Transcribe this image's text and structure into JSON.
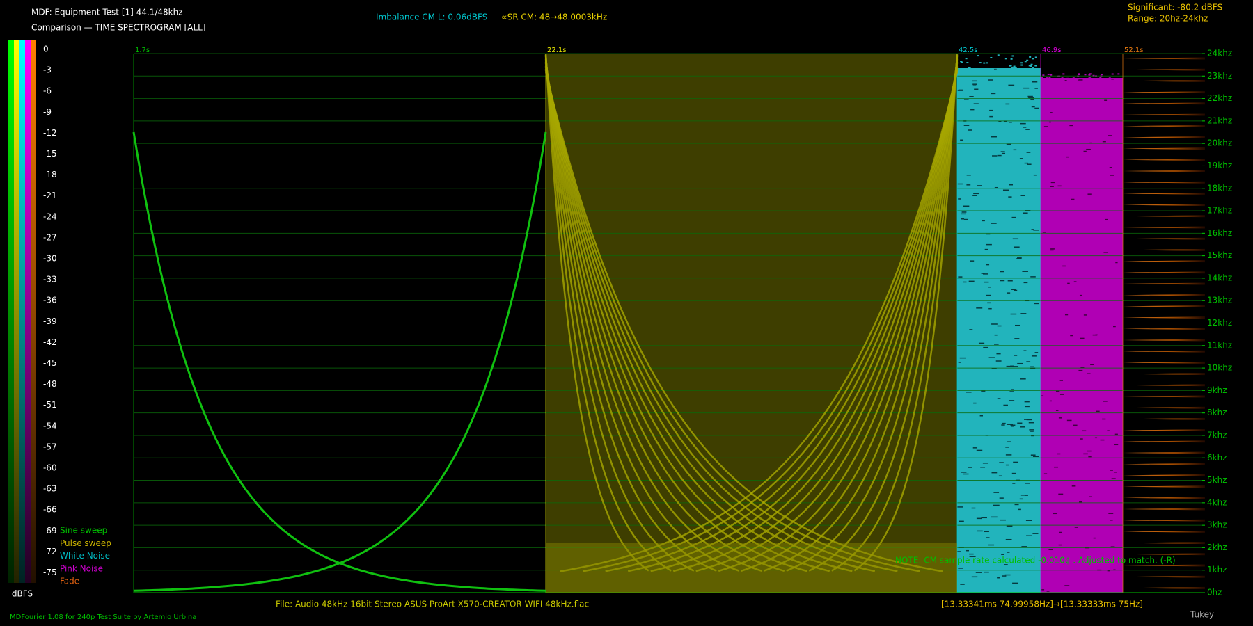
{
  "header": {
    "title": "MDF: Equipment Test [1] 44.1/48khz",
    "subtitle": "Comparison — TIME SPECTROGRAM [ALL]",
    "imbalance": "Imbalance CM L: 0.06dBFS",
    "sample_rate": "∝SR CM: 48→48.0003kHz",
    "significant": "Significant: -80.2 dBFS",
    "range": "Range: 20hz-24khz"
  },
  "scale": {
    "labels": [
      "0",
      "-3",
      "-6",
      "-9",
      "-12",
      "-15",
      "-18",
      "-21",
      "-24",
      "-27",
      "-30",
      "-33",
      "-36",
      "-39",
      "-42",
      "-45",
      "-48",
      "-51",
      "-54",
      "-57",
      "-60",
      "-63",
      "-66",
      "-69",
      "-72",
      "-75"
    ],
    "unit": "dBFS"
  },
  "legend": [
    "Sine sweep",
    "Pulse sweep",
    "White Noise",
    "Pink Noise",
    "Fade"
  ],
  "segments": [
    "1.7s",
    "22.1s",
    "42.5s",
    "46.9s",
    "52.1s"
  ],
  "frequency_labels": [
    "24khz",
    "23khz",
    "22khz",
    "21khz",
    "20khz",
    "19khz",
    "18khz",
    "17khz",
    "16khz",
    "15khz",
    "14khz",
    "13khz",
    "12khz",
    "11khz",
    "10khz",
    "9khz",
    "8khz",
    "7khz",
    "6khz",
    "5khz",
    "4khz",
    "3khz",
    "2khz",
    "1khz",
    "0hz"
  ],
  "note": "NOTE: CM sample rate calculated -0.010¢ . Adjusted to match. (-R)",
  "footer": {
    "file": "File: Audio   48kHz 16bit Stereo ASUS ProArt X570-CREATOR WIFI 48kHz.flac",
    "timing": "[13.33341ms 74.99958Hz]→[13.33333ms 75Hz]",
    "credit": "MDFourier 1.08 for 240p Test Suite by Artemio Urbina",
    "window": "Tukey"
  }
}
